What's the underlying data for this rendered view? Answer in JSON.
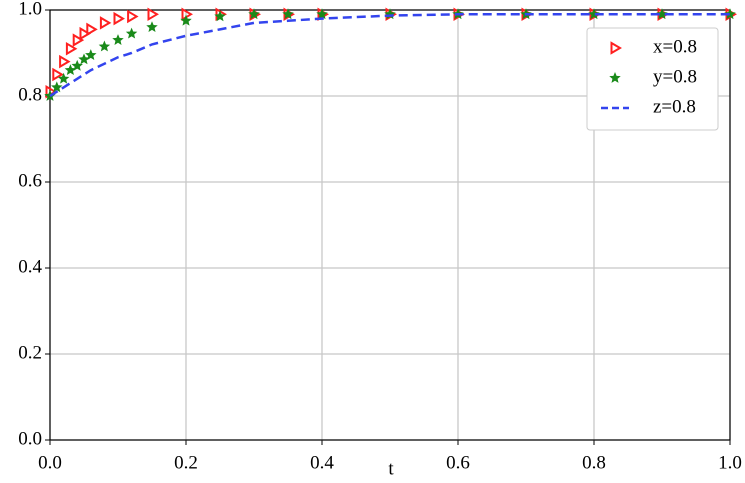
{
  "chart_data": {
    "type": "line",
    "xlabel": "t",
    "x": [
      0,
      0.01,
      0.02,
      0.03,
      0.04,
      0.05,
      0.06,
      0.08,
      0.1,
      0.12,
      0.15,
      0.2,
      0.25,
      0.3,
      0.35,
      0.4,
      0.5,
      0.6,
      0.7,
      0.8,
      0.9,
      1.0
    ],
    "series": [
      {
        "name": "x=0.8",
        "color": "#ff2020",
        "style": "triangle",
        "values": [
          0.81,
          0.85,
          0.88,
          0.91,
          0.93,
          0.945,
          0.955,
          0.97,
          0.98,
          0.985,
          0.99,
          0.99,
          0.99,
          0.99,
          0.99,
          0.99,
          0.99,
          0.99,
          0.99,
          0.99,
          0.99,
          0.99
        ]
      },
      {
        "name": "y=0.8",
        "color": "#1a8a1a",
        "style": "star",
        "values": [
          0.8,
          0.82,
          0.84,
          0.86,
          0.87,
          0.885,
          0.895,
          0.915,
          0.93,
          0.945,
          0.96,
          0.975,
          0.985,
          0.99,
          0.99,
          0.99,
          0.99,
          0.99,
          0.99,
          0.99,
          0.99,
          0.99
        ]
      },
      {
        "name": "z=0.8",
        "color": "#3344ee",
        "style": "dashed",
        "values": [
          0.8,
          0.81,
          0.82,
          0.83,
          0.84,
          0.85,
          0.86,
          0.875,
          0.89,
          0.9,
          0.92,
          0.94,
          0.955,
          0.97,
          0.975,
          0.98,
          0.987,
          0.99,
          0.99,
          0.99,
          0.99,
          0.99
        ]
      }
    ],
    "xlim": [
      0,
      1
    ],
    "ylim": [
      0,
      1
    ],
    "xticks": [
      {
        "value": 0,
        "label": "0.0"
      },
      0.2,
      0.4,
      0.6,
      0.8,
      {
        "value": 1,
        "label": "1.0"
      }
    ],
    "yticks": [
      {
        "value": 0,
        "label": "0.0"
      },
      0.2,
      0.4,
      0.6,
      0.8,
      {
        "value": 1,
        "label": "1.0"
      }
    ],
    "grid": true,
    "legend": "upper right"
  }
}
